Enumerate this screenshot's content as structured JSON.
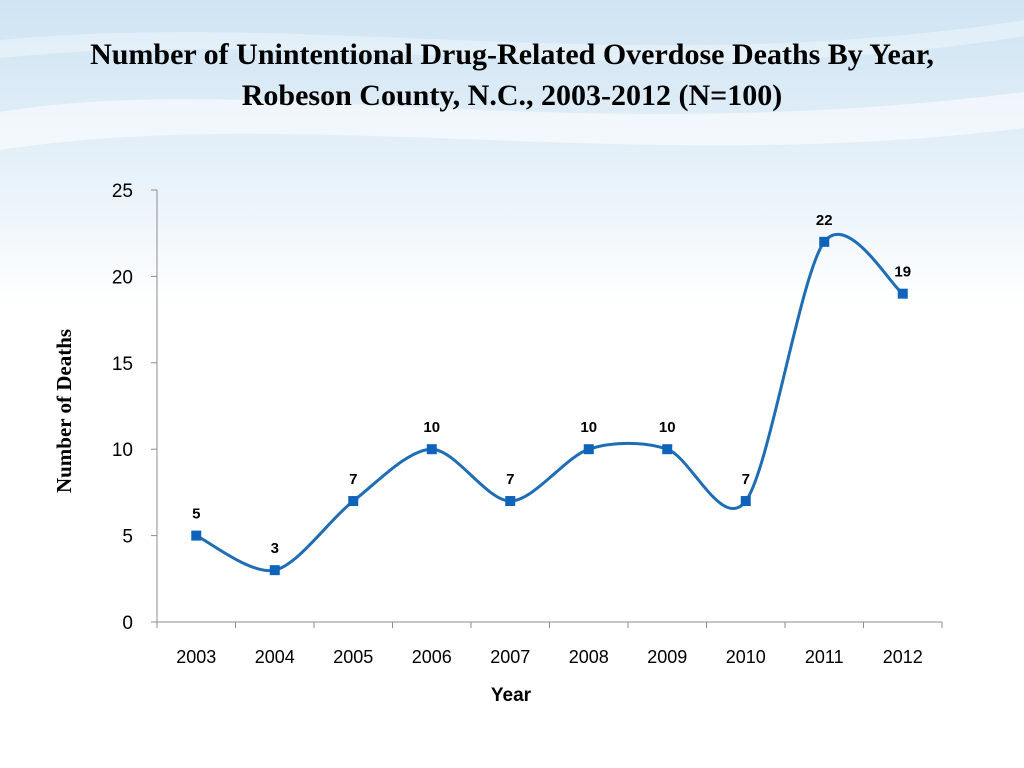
{
  "slide": {
    "title": "Number of Unintentional Drug-Related Overdose Deaths By Year, Robeson County, N.C., 2003-2012 (N=100)"
  },
  "colors": {
    "series": "#1f6db5",
    "marker": "#0f63b8",
    "axis": "#8c8c8c",
    "background_top": "#cfe4f3"
  },
  "chart_data": {
    "type": "line",
    "title": "Number of Unintentional Drug-Related Overdose Deaths By Year, Robeson County, N.C., 2003-2012 (N=100)",
    "xlabel": "Year",
    "ylabel": "Number of Deaths",
    "categories": [
      "2003",
      "2004",
      "2005",
      "2006",
      "2007",
      "2008",
      "2009",
      "2010",
      "2011",
      "2012"
    ],
    "series": [
      {
        "values": [
          5,
          3,
          7,
          10,
          7,
          10,
          10,
          7,
          22,
          19
        ]
      }
    ],
    "ylim": [
      0,
      25
    ],
    "yticks": [
      0,
      5,
      10,
      15,
      20,
      25
    ],
    "smooth": true,
    "markers": "square",
    "data_labels": true,
    "grid": false,
    "legend": "none"
  }
}
